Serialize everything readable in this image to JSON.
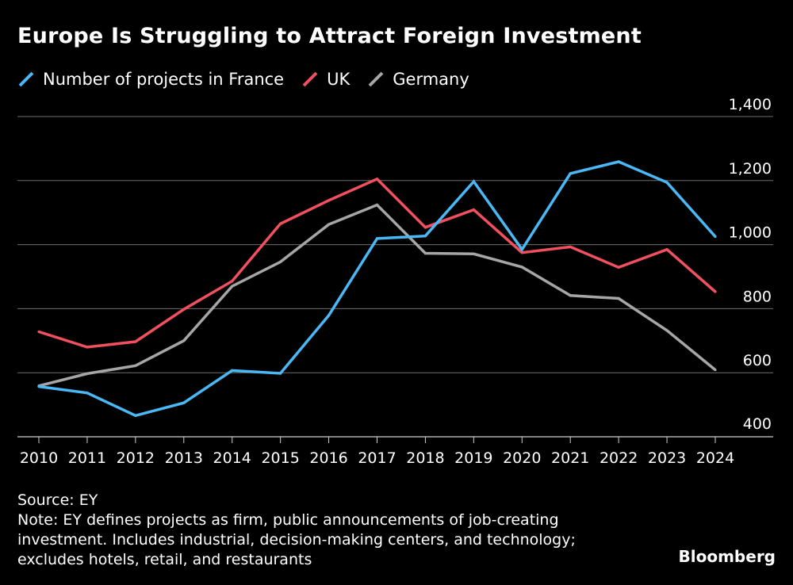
{
  "title": "Europe Is Struggling to Attract Foreign Investment",
  "footer": {
    "source": "Source: EY",
    "note_lines": [
      "Note: EY defines projects as firm, public announcements of job-creating",
      "investment. Includes industrial, decision-making centers, and technology;",
      "excludes hotels, retail, and restaurants"
    ]
  },
  "brand": "Bloomberg",
  "colors": {
    "background": "#000000",
    "text": "#ffffff",
    "grid": "#6e6e6e",
    "axis": "#cfcfcf"
  },
  "chart_data": {
    "type": "line",
    "title": "Europe Is Struggling to Attract Foreign Investment",
    "xlabel": "",
    "ylabel": "",
    "x": [
      2010,
      2011,
      2012,
      2013,
      2014,
      2015,
      2016,
      2017,
      2018,
      2019,
      2020,
      2021,
      2022,
      2023,
      2024
    ],
    "ylim": [
      400,
      1400
    ],
    "yticks": [
      400,
      600,
      800,
      1000,
      1200,
      1400
    ],
    "ytick_labels": [
      "400",
      "600",
      "800",
      "1,000",
      "1,200",
      "1,400"
    ],
    "grid": true,
    "y_axis_position": "right",
    "legend_position": "top-left",
    "series": [
      {
        "name": "Number of projects in France",
        "color": "#4ab8f5",
        "values": [
          557,
          537,
          466,
          506,
          607,
          598,
          779,
          1019,
          1027,
          1197,
          985,
          1222,
          1259,
          1194,
          1025
        ]
      },
      {
        "name": "UK",
        "color": "#f2505f",
        "values": [
          728,
          680,
          697,
          798,
          886,
          1065,
          1138,
          1205,
          1054,
          1109,
          975,
          993,
          929,
          985,
          853
        ]
      },
      {
        "name": "Germany",
        "color": "#a6a6a6",
        "values": [
          559,
          597,
          622,
          700,
          870,
          946,
          1063,
          1124,
          973,
          971,
          930,
          841,
          832,
          732,
          609
        ]
      }
    ]
  }
}
